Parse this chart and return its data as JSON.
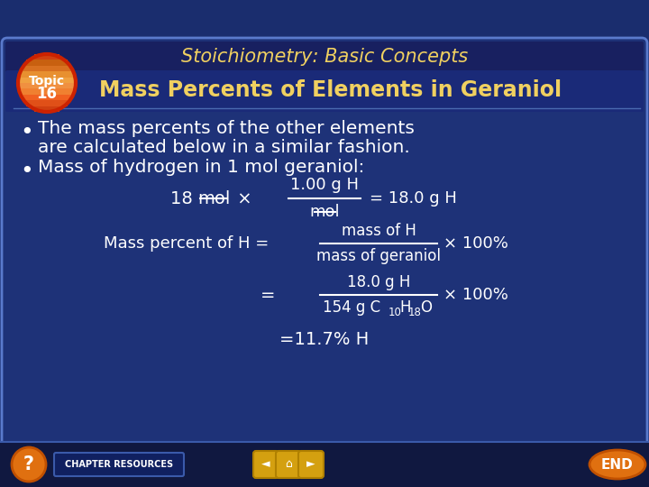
{
  "bg_color": "#1a2d6e",
  "title_text": "Stoichiometry: Basic Concepts",
  "title_color": "#f0d060",
  "subtitle_text": "Mass Percents of Elements in Geraniol",
  "subtitle_color": "#f0d060",
  "body_color": "#ffffff",
  "topic_label": "Topic\n16",
  "footer_bg": "#162060",
  "border_color": "#5a7acc",
  "panel_color": "#1e3278",
  "header_strip_color": "#162878"
}
